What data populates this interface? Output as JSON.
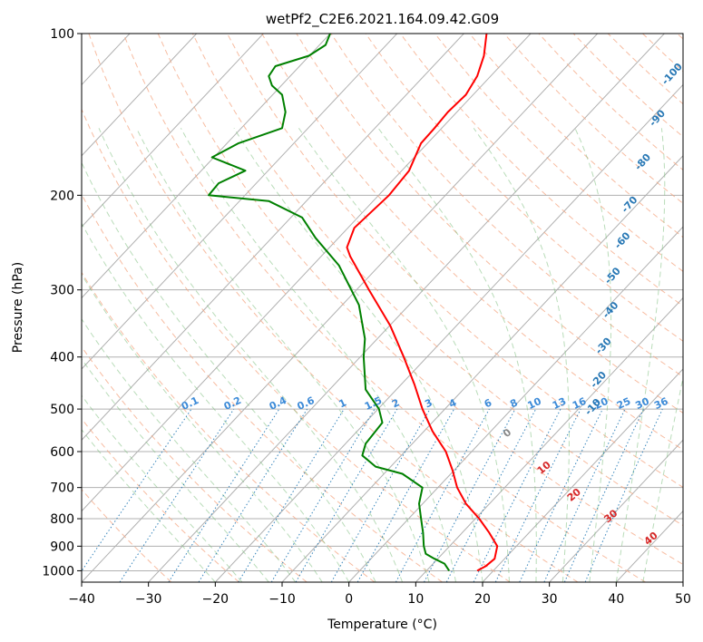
{
  "chart_data": {
    "type": "line",
    "title": "wetPf2_C2E6.2021.164.09.42.G09",
    "xlabel": "Temperature (°C)",
    "ylabel": "Pressure (hPa)",
    "xlim": [
      -40,
      50
    ],
    "ylim": [
      1050,
      100
    ],
    "y_scale": "log",
    "grid": true,
    "x_ticks": [
      -40,
      -30,
      -20,
      -10,
      0,
      10,
      20,
      30,
      40,
      50
    ],
    "x_tick_labels": [
      "−40",
      "−30",
      "−20",
      "−10",
      "0",
      "10",
      "20",
      "30",
      "40",
      "50"
    ],
    "y_ticks": [
      1000,
      900,
      800,
      700,
      600,
      500,
      400,
      300,
      200,
      100
    ],
    "y_tick_labels": [
      "1000",
      "900",
      "800",
      "700",
      "600",
      "500",
      "400",
      "300",
      "200",
      "100"
    ],
    "series": [
      {
        "color": "#ff0000",
        "points": [
          [
            19.2,
            1000
          ],
          [
            20.5,
            980
          ],
          [
            21.8,
            950
          ],
          [
            22.2,
            900
          ],
          [
            21.0,
            850
          ],
          [
            19.5,
            800
          ],
          [
            17.5,
            750
          ],
          [
            16.2,
            700
          ],
          [
            15.5,
            650
          ],
          [
            14.5,
            600
          ],
          [
            12.5,
            550
          ],
          [
            11.0,
            500
          ],
          [
            9.8,
            450
          ],
          [
            8.2,
            400
          ],
          [
            6.2,
            350
          ],
          [
            3.0,
            300
          ],
          [
            0.2,
            260
          ],
          [
            -0.3,
            250
          ],
          [
            0.8,
            230
          ],
          [
            6.0,
            200
          ],
          [
            9.0,
            180
          ],
          [
            10.8,
            160
          ],
          [
            12.8,
            150
          ],
          [
            14.8,
            140
          ],
          [
            17.5,
            130
          ],
          [
            19.2,
            120
          ],
          [
            20.2,
            110
          ],
          [
            20.6,
            100
          ]
        ]
      },
      {
        "color": "#008000",
        "points": [
          [
            15.0,
            1000
          ],
          [
            14.3,
            970
          ],
          [
            12.8,
            950
          ],
          [
            11.5,
            930
          ],
          [
            11.2,
            900
          ],
          [
            11.1,
            850
          ],
          [
            10.8,
            800
          ],
          [
            10.5,
            750
          ],
          [
            11.0,
            700
          ],
          [
            8.0,
            660
          ],
          [
            4.0,
            640
          ],
          [
            2.0,
            610
          ],
          [
            2.5,
            580
          ],
          [
            5.0,
            530
          ],
          [
            4.5,
            500
          ],
          [
            2.5,
            460
          ],
          [
            2.2,
            400
          ],
          [
            2.4,
            370
          ],
          [
            1.5,
            320
          ],
          [
            -1.5,
            270
          ],
          [
            -5.0,
            240
          ],
          [
            -7.0,
            220
          ],
          [
            -12.0,
            205
          ],
          [
            -21.0,
            200
          ],
          [
            -19.5,
            190
          ],
          [
            -15.5,
            180
          ],
          [
            -20.5,
            170
          ],
          [
            -16.5,
            160
          ],
          [
            -10.0,
            150
          ],
          [
            -9.5,
            140
          ],
          [
            -10.0,
            130
          ],
          [
            -11.5,
            125
          ],
          [
            -12.0,
            120
          ],
          [
            -11.0,
            115
          ],
          [
            -6.0,
            110
          ],
          [
            -3.5,
            105
          ],
          [
            -2.8,
            100
          ]
        ]
      }
    ],
    "dry_adiabat_labels": [
      "-100",
      "-90",
      "-80",
      "-70",
      "-60",
      "-50",
      "-40",
      "-30",
      "-20",
      "-10"
    ],
    "mixing_ratio_labels": [
      "0.1",
      "0.2",
      "0.4",
      "0.6",
      "1",
      "1.5",
      "2",
      "3",
      "4",
      "6",
      "8",
      "10",
      "13",
      "16",
      "20",
      "25",
      "30",
      "36"
    ],
    "moist_adiabat_labels": [
      "0",
      "10",
      "20",
      "30",
      "40"
    ]
  }
}
